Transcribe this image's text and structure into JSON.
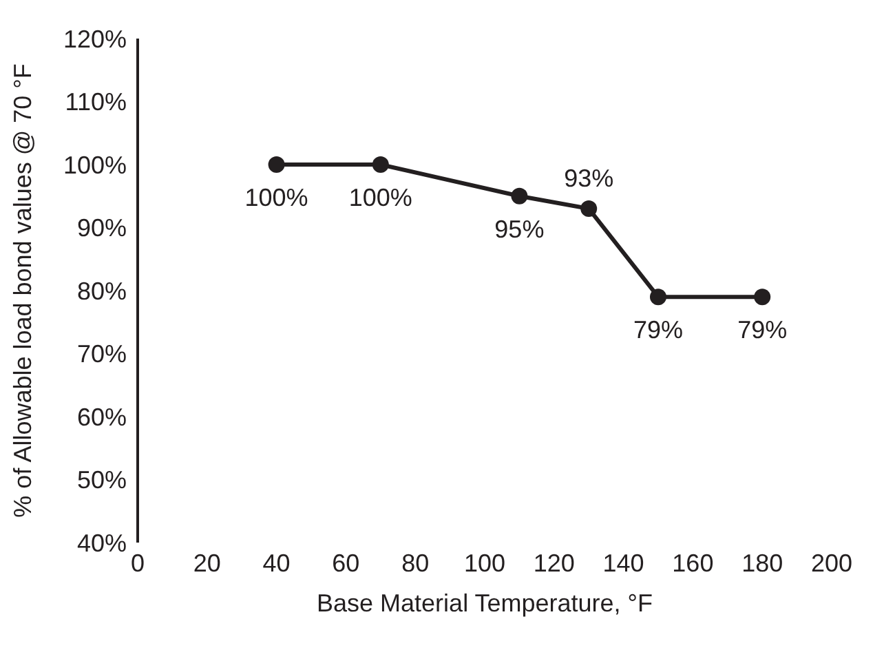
{
  "chart_data": {
    "type": "line",
    "xlabel": "Base Material Temperature, °F",
    "ylabel": "% of Allowable load bond values @ 70 °F",
    "x": [
      40,
      70,
      110,
      130,
      150,
      180
    ],
    "series": [
      {
        "color": "#231f20",
        "values": [
          100,
          100,
          95,
          93,
          79,
          79
        ]
      }
    ],
    "value_labels": [
      "100%",
      "100%",
      "95%",
      "93%",
      "79%",
      "79%"
    ],
    "xlim": [
      0,
      200
    ],
    "xticks": [
      0,
      20,
      40,
      60,
      80,
      100,
      120,
      140,
      160,
      180,
      200
    ],
    "ylim": [
      40,
      120
    ],
    "yticks": [
      {
        "value": 40,
        "label": "40%"
      },
      {
        "value": 50,
        "label": "50%"
      },
      {
        "value": 60,
        "label": "60%"
      },
      {
        "value": 70,
        "label": "70%"
      },
      {
        "value": 80,
        "label": "80%"
      },
      {
        "value": 90,
        "label": "90%"
      },
      {
        "value": 100,
        "label": "100%"
      },
      {
        "value": 110,
        "label": "110%"
      },
      {
        "value": 120,
        "label": "120%"
      }
    ],
    "grid": false,
    "marker": "circle",
    "line_style": "solid",
    "legend": false
  }
}
